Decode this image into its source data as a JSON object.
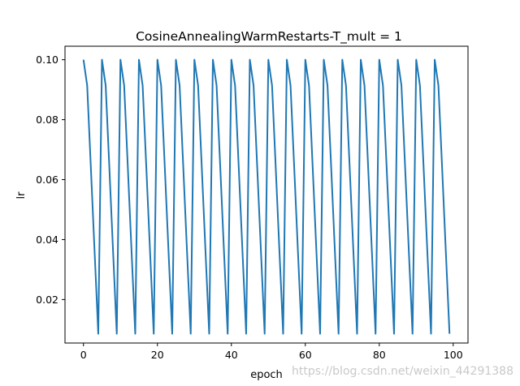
{
  "chart_data": {
    "type": "line",
    "title": "CosineAnnealingWarmRestarts-T_mult = 1",
    "xlabel": "epoch",
    "ylabel": "lr",
    "xlim": [
      -5,
      104
    ],
    "ylim": [
      0.0055,
      0.1045
    ],
    "grid": false,
    "legend": "none",
    "line_color": "#1f77b4",
    "xticks": [
      0,
      20,
      40,
      60,
      80,
      100
    ],
    "xtick_labels": [
      "0",
      "20",
      "40",
      "60",
      "80",
      "100"
    ],
    "yticks": [
      0.02,
      0.04,
      0.06,
      0.08,
      0.1
    ],
    "ytick_labels": [
      "0.02",
      "0.04",
      "0.06",
      "0.08",
      "0.10"
    ],
    "series": [
      {
        "x": [
          0,
          1,
          2,
          3,
          4,
          5,
          6,
          7,
          8,
          9,
          10,
          11,
          12,
          13,
          14,
          15,
          16,
          17,
          18,
          19,
          20,
          21,
          22,
          23,
          24,
          25,
          26,
          27,
          28,
          29,
          30,
          31,
          32,
          33,
          34,
          35,
          36,
          37,
          38,
          39,
          40,
          41,
          42,
          43,
          44,
          45,
          46,
          47,
          48,
          49,
          50,
          51,
          52,
          53,
          54,
          55,
          56,
          57,
          58,
          59,
          60,
          61,
          62,
          63,
          64,
          65,
          66,
          67,
          68,
          69,
          70,
          71,
          72,
          73,
          74,
          75,
          76,
          77,
          78,
          79,
          80,
          81,
          82,
          83,
          84,
          85,
          86,
          87,
          88,
          89,
          90,
          91,
          92,
          93,
          94,
          95,
          96,
          97,
          98,
          99
        ],
        "values": [
          0.1,
          0.0914,
          0.0639,
          0.0361,
          0.0086,
          0.1,
          0.0914,
          0.0639,
          0.0361,
          0.0086,
          0.1,
          0.0914,
          0.0639,
          0.0361,
          0.0086,
          0.1,
          0.0914,
          0.0639,
          0.0361,
          0.0086,
          0.1,
          0.0914,
          0.0639,
          0.0361,
          0.0086,
          0.1,
          0.0914,
          0.0639,
          0.0361,
          0.0086,
          0.1,
          0.0914,
          0.0639,
          0.0361,
          0.0086,
          0.1,
          0.0914,
          0.0639,
          0.0361,
          0.0086,
          0.1,
          0.0914,
          0.0639,
          0.0361,
          0.0086,
          0.1,
          0.0914,
          0.0639,
          0.0361,
          0.0086,
          0.1,
          0.0914,
          0.0639,
          0.0361,
          0.0086,
          0.1,
          0.0914,
          0.0639,
          0.0361,
          0.0086,
          0.1,
          0.0914,
          0.0639,
          0.0361,
          0.0086,
          0.1,
          0.0914,
          0.0639,
          0.0361,
          0.0086,
          0.1,
          0.0914,
          0.0639,
          0.0361,
          0.0086,
          0.1,
          0.0914,
          0.0639,
          0.0361,
          0.0086,
          0.1,
          0.0914,
          0.0639,
          0.0361,
          0.0086,
          0.1,
          0.0914,
          0.0639,
          0.0361,
          0.0086,
          0.1,
          0.0914,
          0.0639,
          0.0361,
          0.0086,
          0.1,
          0.0914,
          0.0639,
          0.0361,
          0.0086
        ]
      }
    ]
  },
  "watermark": "https://blog.csdn.net/weixin_44291388"
}
